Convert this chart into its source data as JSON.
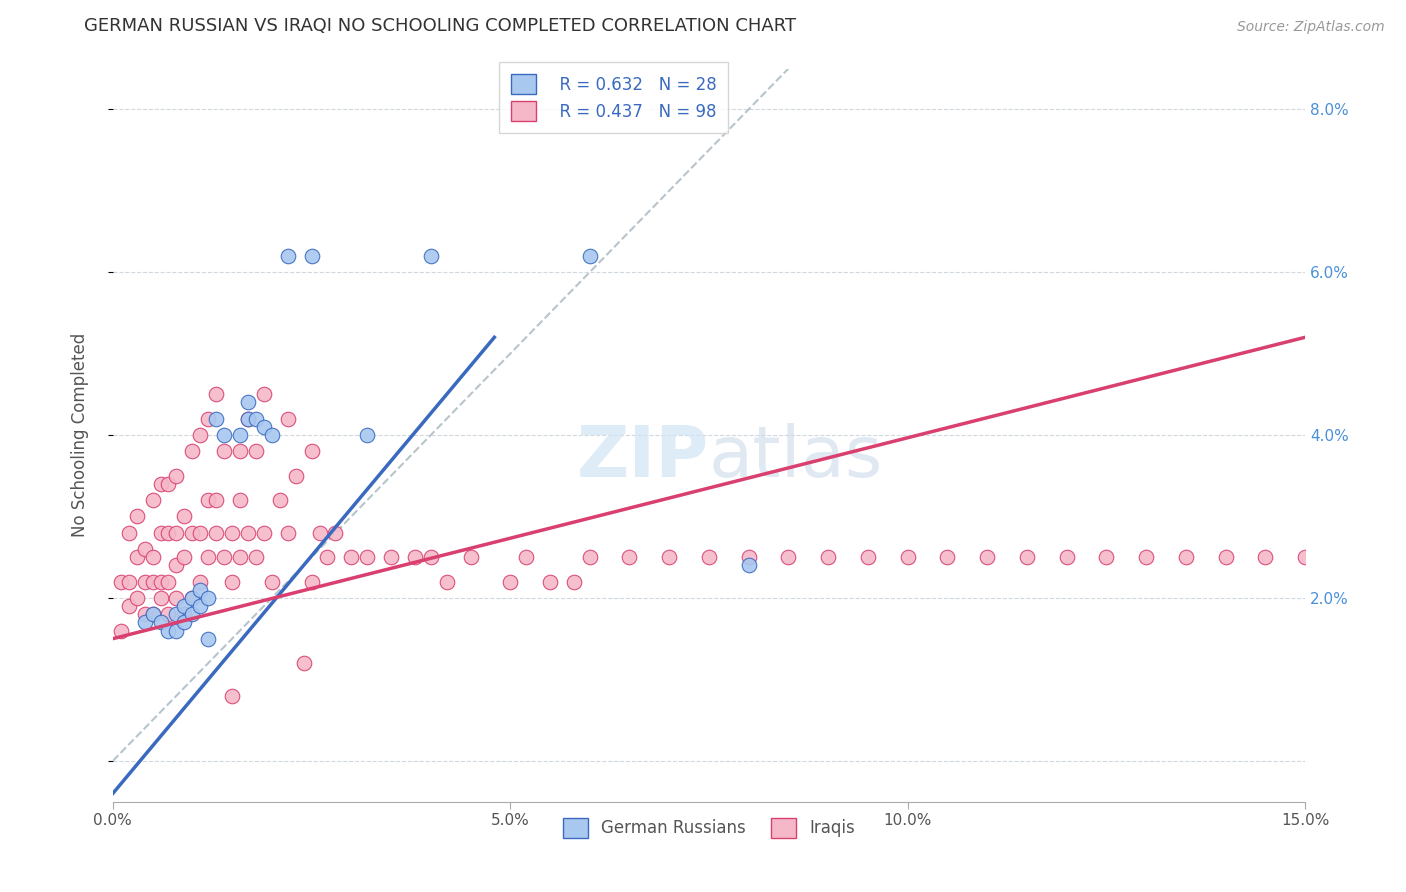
{
  "title": "GERMAN RUSSIAN VS IRAQI NO SCHOOLING COMPLETED CORRELATION CHART",
  "source": "Source: ZipAtlas.com",
  "ylabel": "No Schooling Completed",
  "x_min": 0.0,
  "x_max": 0.15,
  "y_min": -0.005,
  "y_max": 0.085,
  "x_ticks": [
    0.0,
    0.05,
    0.1,
    0.15
  ],
  "x_tick_labels": [
    "0.0%",
    "5.0%",
    "10.0%",
    "15.0%"
  ],
  "y_ticks": [
    0.0,
    0.02,
    0.04,
    0.06,
    0.08
  ],
  "y_tick_labels": [
    "",
    "2.0%",
    "4.0%",
    "6.0%",
    "8.0%"
  ],
  "legend_label_blue": "German Russians",
  "legend_label_pink": "Iraqis",
  "legend_R_blue": "R = 0.632",
  "legend_N_blue": "N = 28",
  "legend_R_pink": "R = 0.437",
  "legend_N_pink": "N = 98",
  "color_blue": "#a8c8f0",
  "color_pink": "#f5b8c8",
  "color_line_blue": "#3a6abf",
  "color_line_pink": "#d94070",
  "color_dashed": "#b8c4cc",
  "blue_line_x0": 0.0,
  "blue_line_y0": -0.004,
  "blue_line_x1": 0.048,
  "blue_line_y1": 0.052,
  "pink_line_x0": 0.0,
  "pink_line_y0": 0.015,
  "pink_line_x1": 0.15,
  "pink_line_y1": 0.052,
  "blue_x": [
    0.004,
    0.005,
    0.006,
    0.007,
    0.008,
    0.008,
    0.009,
    0.009,
    0.01,
    0.01,
    0.011,
    0.011,
    0.012,
    0.012,
    0.013,
    0.014,
    0.016,
    0.017,
    0.017,
    0.018,
    0.019,
    0.02,
    0.022,
    0.025,
    0.032,
    0.04,
    0.06,
    0.08
  ],
  "blue_y": [
    0.017,
    0.018,
    0.017,
    0.016,
    0.016,
    0.018,
    0.017,
    0.019,
    0.018,
    0.02,
    0.019,
    0.021,
    0.015,
    0.02,
    0.042,
    0.04,
    0.04,
    0.042,
    0.044,
    0.042,
    0.041,
    0.04,
    0.062,
    0.062,
    0.04,
    0.062,
    0.062,
    0.024
  ],
  "pink_x": [
    0.001,
    0.001,
    0.002,
    0.002,
    0.002,
    0.003,
    0.003,
    0.003,
    0.004,
    0.004,
    0.004,
    0.005,
    0.005,
    0.005,
    0.005,
    0.006,
    0.006,
    0.006,
    0.006,
    0.007,
    0.007,
    0.007,
    0.007,
    0.008,
    0.008,
    0.008,
    0.008,
    0.009,
    0.009,
    0.009,
    0.01,
    0.01,
    0.01,
    0.011,
    0.011,
    0.011,
    0.012,
    0.012,
    0.012,
    0.013,
    0.013,
    0.013,
    0.014,
    0.014,
    0.015,
    0.015,
    0.015,
    0.016,
    0.016,
    0.016,
    0.017,
    0.017,
    0.018,
    0.018,
    0.019,
    0.019,
    0.02,
    0.021,
    0.022,
    0.022,
    0.023,
    0.024,
    0.025,
    0.025,
    0.026,
    0.027,
    0.028,
    0.03,
    0.032,
    0.035,
    0.038,
    0.04,
    0.042,
    0.045,
    0.05,
    0.052,
    0.055,
    0.058,
    0.06,
    0.065,
    0.07,
    0.075,
    0.08,
    0.085,
    0.09,
    0.095,
    0.1,
    0.105,
    0.11,
    0.115,
    0.12,
    0.125,
    0.13,
    0.135,
    0.14,
    0.145,
    0.15,
    0.155
  ],
  "pink_y": [
    0.016,
    0.022,
    0.019,
    0.022,
    0.028,
    0.02,
    0.025,
    0.03,
    0.018,
    0.022,
    0.026,
    0.018,
    0.022,
    0.025,
    0.032,
    0.02,
    0.022,
    0.028,
    0.034,
    0.018,
    0.022,
    0.028,
    0.034,
    0.02,
    0.024,
    0.028,
    0.035,
    0.018,
    0.025,
    0.03,
    0.02,
    0.028,
    0.038,
    0.022,
    0.028,
    0.04,
    0.025,
    0.032,
    0.042,
    0.028,
    0.032,
    0.045,
    0.025,
    0.038,
    0.022,
    0.028,
    0.008,
    0.025,
    0.032,
    0.038,
    0.028,
    0.042,
    0.025,
    0.038,
    0.028,
    0.045,
    0.022,
    0.032,
    0.028,
    0.042,
    0.035,
    0.012,
    0.022,
    0.038,
    0.028,
    0.025,
    0.028,
    0.025,
    0.025,
    0.025,
    0.025,
    0.025,
    0.022,
    0.025,
    0.022,
    0.025,
    0.022,
    0.022,
    0.025,
    0.025,
    0.025,
    0.025,
    0.025,
    0.025,
    0.025,
    0.025,
    0.025,
    0.025,
    0.025,
    0.025,
    0.025,
    0.025,
    0.025,
    0.025,
    0.025,
    0.025,
    0.025,
    0.025
  ]
}
